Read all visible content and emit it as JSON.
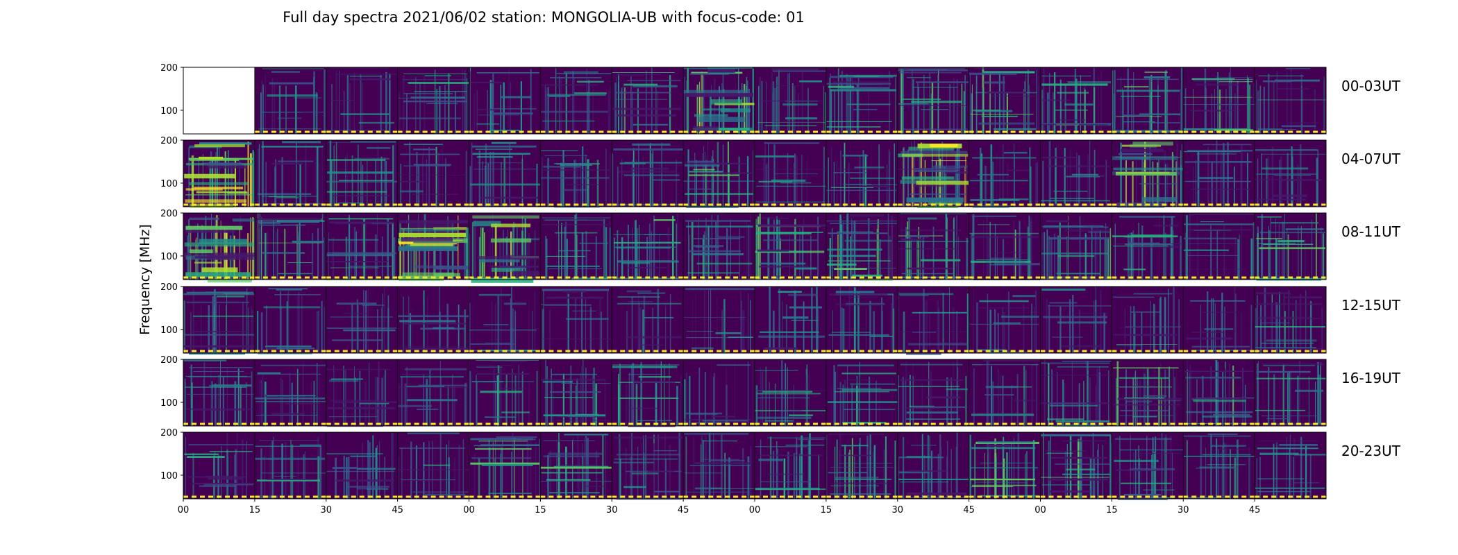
{
  "chart_data": {
    "type": "heatmap",
    "title": "Full day spectra 2021/06/02 station: MONGOLIA-UB with focus-code: 01",
    "ylabel": "Frequency [MHz]",
    "xlabel": "",
    "x_tick_labels": [
      "00",
      "15",
      "30",
      "45",
      "00",
      "15",
      "30",
      "45",
      "00",
      "15",
      "30",
      "45",
      "00",
      "15",
      "30",
      "45"
    ],
    "y_tick_labels": [
      "200",
      "100"
    ],
    "ylim": [
      45,
      200
    ],
    "colormap": "viridis",
    "panels_per_row": 16,
    "panel_minutes": 15,
    "missing_panels": [
      {
        "row": 0,
        "col": 0
      }
    ],
    "rows": [
      {
        "label": "00-03UT",
        "hours": [
          0,
          1,
          2,
          3
        ]
      },
      {
        "label": "04-07UT",
        "hours": [
          4,
          5,
          6,
          7
        ]
      },
      {
        "label": "08-11UT",
        "hours": [
          8,
          9,
          10,
          11
        ]
      },
      {
        "label": "12-15UT",
        "hours": [
          12,
          13,
          14,
          15
        ]
      },
      {
        "label": "16-19UT",
        "hours": [
          16,
          17,
          18,
          19
        ]
      },
      {
        "label": "20-23UT",
        "hours": [
          20,
          21,
          22,
          23
        ]
      }
    ],
    "panel_intensity": [
      [
        0,
        0.3,
        0.25,
        0.45,
        0.3,
        0.35,
        0.45,
        0.75,
        0.45,
        0.5,
        0.5,
        0.55,
        0.5,
        0.55,
        0.5,
        0.35
      ],
      [
        0.8,
        0.35,
        0.4,
        0.3,
        0.4,
        0.4,
        0.3,
        0.5,
        0.35,
        0.35,
        0.85,
        0.3,
        0.3,
        0.65,
        0.35,
        0.3
      ],
      [
        0.85,
        0.55,
        0.45,
        0.85,
        0.7,
        0.45,
        0.5,
        0.4,
        0.55,
        0.6,
        0.55,
        0.45,
        0.55,
        0.4,
        0.35,
        0.55
      ],
      [
        0.45,
        0.3,
        0.25,
        0.25,
        0.3,
        0.25,
        0.25,
        0.25,
        0.25,
        0.3,
        0.25,
        0.25,
        0.25,
        0.3,
        0.25,
        0.4
      ],
      [
        0.4,
        0.35,
        0.35,
        0.3,
        0.45,
        0.4,
        0.45,
        0.25,
        0.4,
        0.35,
        0.4,
        0.3,
        0.4,
        0.5,
        0.45,
        0.4
      ],
      [
        0.35,
        0.3,
        0.3,
        0.3,
        0.55,
        0.5,
        0.45,
        0.35,
        0.4,
        0.5,
        0.3,
        0.5,
        0.5,
        0.4,
        0.35,
        0.3
      ]
    ]
  }
}
